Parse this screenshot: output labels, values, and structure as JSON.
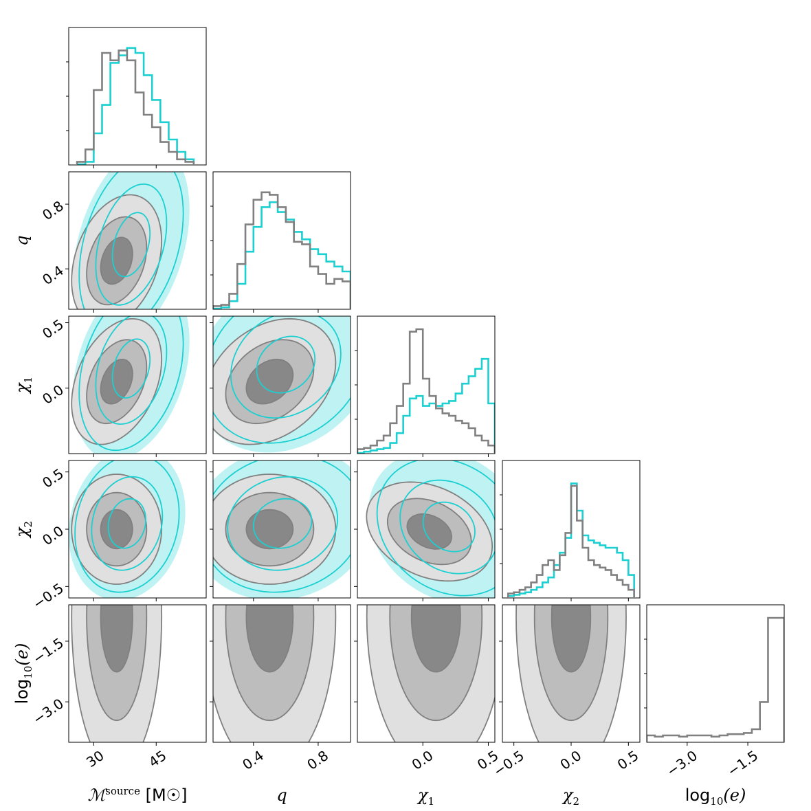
{
  "chart_data": {
    "type": "corner",
    "colors": {
      "series_a": "#808080",
      "series_b": "#1ccfd1"
    },
    "parameters": [
      {
        "key": "mchirp",
        "label_main": "ℳ",
        "label_sup": "source",
        "label_unit": " [M☉]",
        "ticks": [
          30,
          45
        ],
        "tick_labels": [
          "30",
          "45"
        ],
        "range": [
          24,
          57
        ]
      },
      {
        "key": "q",
        "label_main": "q",
        "ticks": [
          0.4,
          0.8
        ],
        "tick_labels": [
          "0.4",
          "0.8"
        ],
        "range": [
          0.15,
          1.0
        ]
      },
      {
        "key": "chi1",
        "label_main": "χ",
        "label_sub": "1",
        "ticks": [
          0.0,
          0.5
        ],
        "tick_labels": [
          "0.0",
          "0.5"
        ],
        "range": [
          -0.5,
          0.55
        ]
      },
      {
        "key": "chi2",
        "label_main": "χ",
        "label_sub": "2",
        "ticks": [
          -0.5,
          0.0,
          0.5
        ],
        "tick_labels": [
          "−0.5",
          "0.0",
          "0.5"
        ],
        "range": [
          -0.6,
          0.6
        ]
      },
      {
        "key": "log10e",
        "label_main": "log",
        "label_sub": "10",
        "label_paren": "(e)",
        "ticks": [
          -3.0,
          -1.5
        ],
        "tick_labels": [
          "−3.0",
          "−1.5"
        ],
        "range": [
          -4.0,
          -0.6
        ]
      }
    ],
    "histograms": {
      "mchirp": {
        "edges": [
          26,
          28,
          30,
          32,
          34,
          36,
          38,
          40,
          42,
          44,
          46,
          48,
          50,
          52,
          54
        ],
        "series_a": [
          0.02,
          0.12,
          0.6,
          0.9,
          0.84,
          0.92,
          0.84,
          0.58,
          0.4,
          0.3,
          0.18,
          0.1,
          0.04,
          0.02
        ],
        "series_b": [
          0.0,
          0.02,
          0.25,
          0.48,
          0.82,
          0.88,
          0.94,
          0.9,
          0.72,
          0.52,
          0.34,
          0.2,
          0.1,
          0.04
        ]
      },
      "q": {
        "edges": [
          0.15,
          0.2,
          0.25,
          0.3,
          0.35,
          0.4,
          0.45,
          0.5,
          0.55,
          0.6,
          0.65,
          0.7,
          0.75,
          0.8,
          0.85,
          0.9,
          0.95,
          1.0
        ],
        "series_a": [
          0.02,
          0.03,
          0.12,
          0.36,
          0.68,
          0.88,
          0.94,
          0.92,
          0.82,
          0.7,
          0.54,
          0.52,
          0.34,
          0.28,
          0.2,
          0.24,
          0.22
        ],
        "series_b": [
          0.0,
          0.01,
          0.06,
          0.2,
          0.46,
          0.66,
          0.82,
          0.86,
          0.78,
          0.72,
          0.62,
          0.56,
          0.48,
          0.44,
          0.38,
          0.34,
          0.3
        ]
      },
      "chi1": {
        "edges": [
          -0.5,
          -0.45,
          -0.4,
          -0.35,
          -0.3,
          -0.25,
          -0.2,
          -0.15,
          -0.1,
          -0.05,
          0.0,
          0.05,
          0.1,
          0.15,
          0.2,
          0.25,
          0.3,
          0.35,
          0.4,
          0.45,
          0.5,
          0.55
        ],
        "series_a": [
          0.03,
          0.04,
          0.06,
          0.1,
          0.14,
          0.24,
          0.38,
          0.56,
          0.98,
          1.0,
          0.6,
          0.46,
          0.36,
          0.32,
          0.3,
          0.26,
          0.24,
          0.2,
          0.14,
          0.1,
          0.06
        ],
        "series_b": [
          0.0,
          0.01,
          0.02,
          0.03,
          0.04,
          0.08,
          0.16,
          0.3,
          0.44,
          0.46,
          0.38,
          0.4,
          0.38,
          0.4,
          0.42,
          0.48,
          0.56,
          0.62,
          0.68,
          0.76,
          0.4
        ]
      },
      "chi2": {
        "edges": [
          -0.55,
          -0.5,
          -0.45,
          -0.4,
          -0.35,
          -0.3,
          -0.25,
          -0.2,
          -0.15,
          -0.1,
          -0.05,
          0.0,
          0.05,
          0.1,
          0.15,
          0.2,
          0.25,
          0.3,
          0.35,
          0.4,
          0.45,
          0.5,
          0.55
        ],
        "series_a": [
          0.03,
          0.04,
          0.06,
          0.08,
          0.12,
          0.18,
          0.26,
          0.3,
          0.22,
          0.34,
          0.52,
          0.9,
          0.62,
          0.4,
          0.3,
          0.26,
          0.24,
          0.22,
          0.18,
          0.14,
          0.1,
          0.06
        ],
        "series_b": [
          0.01,
          0.02,
          0.03,
          0.04,
          0.06,
          0.08,
          0.12,
          0.16,
          0.26,
          0.36,
          0.48,
          0.92,
          0.7,
          0.5,
          0.46,
          0.44,
          0.42,
          0.4,
          0.4,
          0.36,
          0.3,
          0.18
        ]
      },
      "log10e": {
        "edges": [
          -4.0,
          -3.8,
          -3.6,
          -3.4,
          -3.2,
          -3.0,
          -2.8,
          -2.6,
          -2.4,
          -2.2,
          -2.0,
          -1.8,
          -1.6,
          -1.4,
          -1.2,
          -1.0,
          -0.8,
          -0.6
        ],
        "series_a": [
          0.05,
          0.04,
          0.05,
          0.05,
          0.04,
          0.05,
          0.05,
          0.05,
          0.04,
          0.05,
          0.06,
          0.06,
          0.07,
          0.1,
          0.32,
          1.0,
          1.0
        ]
      }
    },
    "contours": [
      {
        "row": 1,
        "col": 0,
        "series_a_mean": [
          35.5,
          0.45
        ],
        "series_a_sd": [
          4.5,
          0.17
        ],
        "series_a_rho": 0.3,
        "series_b_mean": [
          39,
          0.55
        ],
        "series_b_sd": [
          5.0,
          0.22
        ],
        "series_b_rho": 0.35
      },
      {
        "row": 2,
        "col": 0,
        "series_a_mean": [
          35.5,
          0.05
        ],
        "series_a_sd": [
          4.5,
          0.2
        ],
        "series_a_rho": 0.35,
        "series_b_mean": [
          39,
          0.15
        ],
        "series_b_sd": [
          5.0,
          0.25
        ],
        "series_b_rho": 0.3
      },
      {
        "row": 2,
        "col": 1,
        "series_a_mean": [
          0.5,
          0.05
        ],
        "series_a_sd": [
          0.17,
          0.2
        ],
        "series_a_rho": 0.3,
        "series_b_mean": [
          0.6,
          0.18
        ],
        "series_b_sd": [
          0.2,
          0.24
        ],
        "series_b_rho": 0.2
      },
      {
        "row": 3,
        "col": 0,
        "series_a_mean": [
          35.5,
          0.0
        ],
        "series_a_sd": [
          4.5,
          0.2
        ],
        "series_a_rho": 0.0,
        "series_b_mean": [
          38,
          0.05
        ],
        "series_b_sd": [
          5.0,
          0.24
        ],
        "series_b_rho": 0.15
      },
      {
        "row": 3,
        "col": 1,
        "series_a_mean": [
          0.5,
          0.0
        ],
        "series_a_sd": [
          0.17,
          0.2
        ],
        "series_a_rho": 0.0,
        "series_b_mean": [
          0.58,
          0.05
        ],
        "series_b_sd": [
          0.2,
          0.24
        ],
        "series_b_rho": 0.1
      },
      {
        "row": 3,
        "col": 2,
        "series_a_mean": [
          0.05,
          -0.02
        ],
        "series_a_sd": [
          0.2,
          0.18
        ],
        "series_a_rho": -0.3,
        "series_b_mean": [
          0.2,
          0.02
        ],
        "series_b_sd": [
          0.22,
          0.24
        ],
        "series_b_rho": -0.2
      },
      {
        "row": 4,
        "col": 0,
        "series_a_mean": [
          35.5,
          -0.9
        ],
        "series_a_sd": [
          4.5,
          1.6
        ],
        "series_a_rho": 0.0
      },
      {
        "row": 4,
        "col": 1,
        "series_a_mean": [
          0.5,
          -0.9
        ],
        "series_a_sd": [
          0.17,
          1.6
        ],
        "series_a_rho": 0.0
      },
      {
        "row": 4,
        "col": 2,
        "series_a_mean": [
          0.1,
          -0.9
        ],
        "series_a_sd": [
          0.22,
          1.6
        ],
        "series_a_rho": 0.0
      },
      {
        "row": 4,
        "col": 3,
        "series_a_mean": [
          0.0,
          -0.9
        ],
        "series_a_sd": [
          0.2,
          1.6
        ],
        "series_a_rho": 0.0
      }
    ],
    "grid": false,
    "legend": "none"
  }
}
